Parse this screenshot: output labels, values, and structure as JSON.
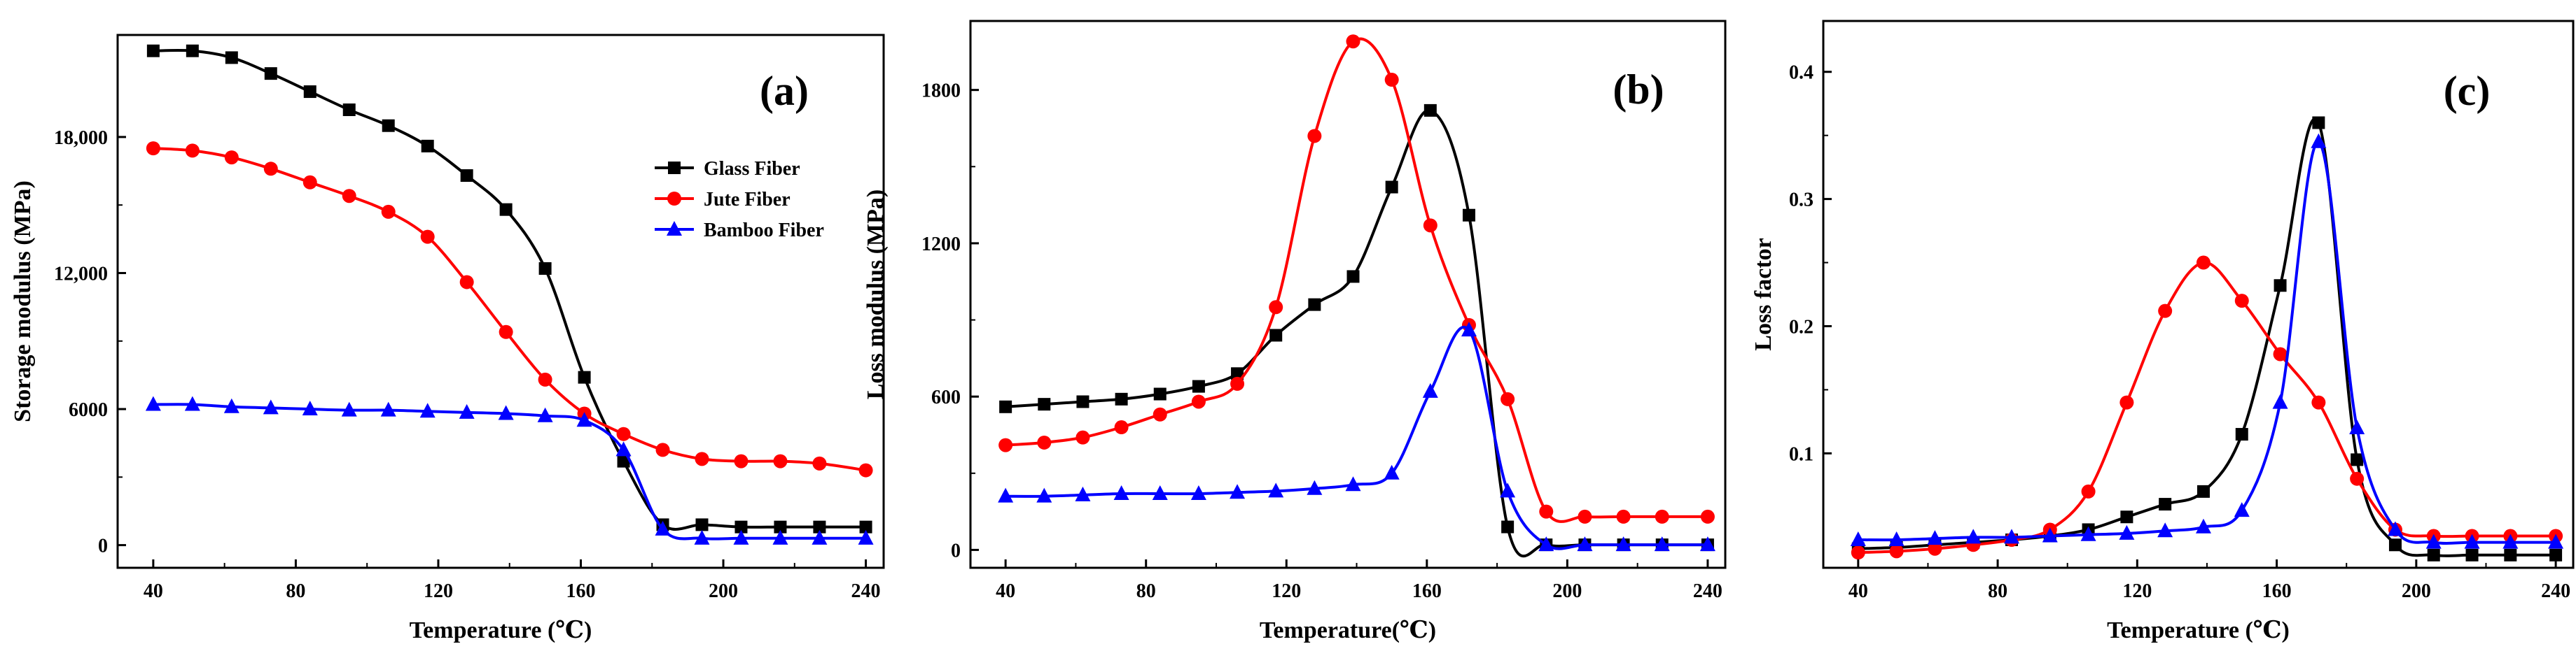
{
  "chart_data": [
    {
      "type": "line",
      "panel_label": "(a)",
      "xlabel": "Temperature (℃)",
      "ylabel": "Storage modulus (MPa)",
      "xlim": [
        30,
        245
      ],
      "ylim": [
        -1000,
        22500
      ],
      "xticks": [
        40,
        80,
        120,
        160,
        200,
        240
      ],
      "xtick_labels": [
        "40",
        "80",
        "120",
        "160",
        "200",
        "240"
      ],
      "yticks": [
        0,
        6000,
        12000,
        18000
      ],
      "ytick_labels": [
        "0",
        "6000",
        "12,000",
        "18,000"
      ],
      "legend": {
        "position": "upper-right",
        "entries": [
          "Glass Fiber",
          "Jute Fiber",
          "Bamboo Fiber"
        ]
      },
      "series": [
        {
          "name": "Glass Fiber",
          "color": "#000000",
          "marker": "square",
          "x": [
            40,
            51,
            62,
            73,
            84,
            95,
            106,
            117,
            128,
            139,
            150,
            161,
            172,
            183,
            194,
            205,
            216,
            227,
            240
          ],
          "y": [
            21800,
            21800,
            21500,
            20800,
            20000,
            19200,
            18500,
            17600,
            16300,
            14800,
            12200,
            7400,
            3700,
            900,
            900,
            800,
            800,
            800,
            800
          ]
        },
        {
          "name": "Jute Fiber",
          "color": "#ff0000",
          "marker": "circle",
          "x": [
            40,
            51,
            62,
            73,
            84,
            95,
            106,
            117,
            128,
            139,
            150,
            161,
            172,
            183,
            194,
            205,
            216,
            227,
            240
          ],
          "y": [
            17500,
            17400,
            17100,
            16600,
            16000,
            15400,
            14700,
            13600,
            11600,
            9400,
            7300,
            5800,
            4900,
            4200,
            3800,
            3700,
            3700,
            3600,
            3300
          ]
        },
        {
          "name": "Bamboo Fiber",
          "color": "#0000ff",
          "marker": "triangle",
          "x": [
            40,
            51,
            62,
            73,
            84,
            95,
            106,
            117,
            128,
            139,
            150,
            161,
            172,
            183,
            194,
            205,
            216,
            227,
            240
          ],
          "y": [
            6200,
            6200,
            6100,
            6050,
            6000,
            5950,
            5950,
            5900,
            5850,
            5800,
            5700,
            5500,
            4200,
            700,
            300,
            300,
            300,
            300,
            300
          ]
        }
      ]
    },
    {
      "type": "line",
      "panel_label": "(b)",
      "xlabel": "Temperature(℃)",
      "ylabel": "Loss modulus (MPa)",
      "xlim": [
        30,
        245
      ],
      "ylim": [
        -70,
        2070
      ],
      "xticks": [
        40,
        80,
        120,
        160,
        200,
        240
      ],
      "xtick_labels": [
        "40",
        "80",
        "120",
        "160",
        "200",
        "240"
      ],
      "yticks": [
        0,
        600,
        1200,
        1800
      ],
      "ytick_labels": [
        "0",
        "600",
        "1200",
        "1800"
      ],
      "series": [
        {
          "name": "Glass Fiber",
          "color": "#000000",
          "marker": "square",
          "x": [
            40,
            51,
            62,
            73,
            84,
            95,
            106,
            117,
            128,
            139,
            150,
            161,
            172,
            183,
            194,
            205,
            216,
            227,
            240
          ],
          "y": [
            560,
            570,
            580,
            590,
            610,
            640,
            690,
            840,
            960,
            1070,
            1420,
            1720,
            1310,
            90,
            20,
            20,
            20,
            20,
            20
          ]
        },
        {
          "name": "Jute Fiber",
          "color": "#ff0000",
          "marker": "circle",
          "x": [
            40,
            51,
            62,
            73,
            84,
            95,
            106,
            117,
            128,
            139,
            150,
            161,
            172,
            183,
            194,
            205,
            216,
            227,
            240
          ],
          "y": [
            410,
            420,
            440,
            480,
            530,
            580,
            650,
            950,
            1620,
            1990,
            1840,
            1270,
            880,
            590,
            150,
            130,
            130,
            130,
            130
          ]
        },
        {
          "name": "Bamboo Fiber",
          "color": "#0000ff",
          "marker": "triangle",
          "x": [
            40,
            51,
            62,
            73,
            84,
            95,
            106,
            117,
            128,
            139,
            150,
            161,
            172,
            183,
            194,
            205,
            216,
            227,
            240
          ],
          "y": [
            210,
            210,
            215,
            220,
            220,
            220,
            225,
            230,
            240,
            255,
            300,
            620,
            860,
            230,
            20,
            20,
            20,
            20,
            20
          ]
        }
      ]
    },
    {
      "type": "line",
      "panel_label": "(c)",
      "xlabel": "Temperature (℃)",
      "ylabel": "Loss factor",
      "xlim": [
        30,
        245
      ],
      "ylim": [
        0.01,
        0.44
      ],
      "xticks": [
        40,
        80,
        120,
        160,
        200,
        240
      ],
      "xtick_labels": [
        "40",
        "80",
        "120",
        "160",
        "200",
        "240"
      ],
      "yticks": [
        0.1,
        0.2,
        0.3,
        0.4
      ],
      "ytick_labels": [
        "0.1",
        "0.2",
        "0.3",
        "0.4"
      ],
      "series": [
        {
          "name": "Glass Fiber",
          "color": "#000000",
          "marker": "square",
          "x": [
            40,
            51,
            62,
            73,
            84,
            95,
            106,
            117,
            128,
            139,
            150,
            161,
            172,
            183,
            194,
            205,
            216,
            227,
            240
          ],
          "y": [
            0.025,
            0.026,
            0.028,
            0.03,
            0.032,
            0.035,
            0.04,
            0.05,
            0.06,
            0.07,
            0.115,
            0.232,
            0.36,
            0.095,
            0.028,
            0.02,
            0.02,
            0.02,
            0.02
          ]
        },
        {
          "name": "Jute Fiber",
          "color": "#ff0000",
          "marker": "circle",
          "x": [
            40,
            51,
            62,
            73,
            84,
            95,
            106,
            117,
            128,
            139,
            150,
            161,
            172,
            183,
            194,
            205,
            216,
            227,
            240
          ],
          "y": [
            0.022,
            0.023,
            0.025,
            0.028,
            0.032,
            0.04,
            0.07,
            0.14,
            0.212,
            0.25,
            0.22,
            0.178,
            0.14,
            0.08,
            0.04,
            0.035,
            0.035,
            0.035,
            0.035
          ]
        },
        {
          "name": "Bamboo Fiber",
          "color": "#0000ff",
          "marker": "triangle",
          "x": [
            40,
            51,
            62,
            73,
            84,
            95,
            106,
            117,
            128,
            139,
            150,
            161,
            172,
            183,
            194,
            205,
            216,
            227,
            240
          ],
          "y": [
            0.032,
            0.032,
            0.033,
            0.034,
            0.034,
            0.035,
            0.036,
            0.037,
            0.039,
            0.042,
            0.055,
            0.14,
            0.345,
            0.12,
            0.04,
            0.03,
            0.03,
            0.03,
            0.03
          ]
        }
      ]
    }
  ]
}
